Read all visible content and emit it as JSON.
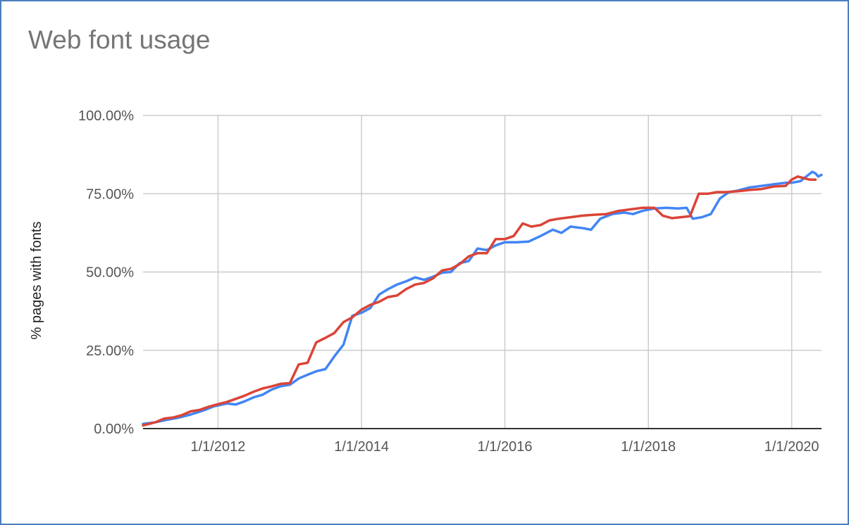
{
  "title": "Web font usage",
  "chart_data": {
    "type": "line",
    "title": "Web font usage",
    "xlabel": "",
    "ylabel": "% pages with fonts",
    "xlim": [
      "2010-12-15",
      "2020-06-01"
    ],
    "ylim": [
      0,
      100
    ],
    "x_ticks": [
      "1/1/2012",
      "1/1/2014",
      "1/1/2016",
      "1/1/2018",
      "1/1/2020"
    ],
    "y_ticks": [
      "0.00%",
      "25.00%",
      "50.00%",
      "75.00%",
      "100.00%"
    ],
    "grid": true,
    "legend": "none",
    "colors": {
      "blue": "#4285f4",
      "red": "#db4437",
      "grid": "#cccccc",
      "axis": "#333333",
      "frame": "#4a7ebb"
    },
    "series": [
      {
        "color": "#4285f4",
        "points": [
          [
            "2010-12-15",
            1.5
          ],
          [
            "2011-02-15",
            2.0
          ],
          [
            "2011-04-15",
            2.8
          ],
          [
            "2011-06-15",
            3.5
          ],
          [
            "2011-08-15",
            4.5
          ],
          [
            "2011-10-15",
            5.7
          ],
          [
            "2011-12-15",
            7.2
          ],
          [
            "2012-02-15",
            8.0
          ],
          [
            "2012-04-01",
            7.7
          ],
          [
            "2012-05-15",
            8.7
          ],
          [
            "2012-07-01",
            10.0
          ],
          [
            "2012-08-15",
            10.8
          ],
          [
            "2012-10-01",
            12.5
          ],
          [
            "2012-11-15",
            13.5
          ],
          [
            "2013-01-01",
            14.0
          ],
          [
            "2013-02-15",
            16.0
          ],
          [
            "2013-04-01",
            17.2
          ],
          [
            "2013-05-15",
            18.3
          ],
          [
            "2013-07-01",
            19.0
          ],
          [
            "2013-08-15",
            23.0
          ],
          [
            "2013-10-01",
            26.8
          ],
          [
            "2013-11-15",
            36.0
          ],
          [
            "2014-01-01",
            37.0
          ],
          [
            "2014-02-15",
            38.5
          ],
          [
            "2014-04-01",
            42.8
          ],
          [
            "2014-05-15",
            44.5
          ],
          [
            "2014-07-01",
            46.0
          ],
          [
            "2014-08-15",
            47.0
          ],
          [
            "2014-10-01",
            48.3
          ],
          [
            "2014-11-15",
            47.5
          ],
          [
            "2015-01-01",
            48.5
          ],
          [
            "2015-02-15",
            49.8
          ],
          [
            "2015-04-01",
            50.0
          ],
          [
            "2015-05-15",
            52.8
          ],
          [
            "2015-07-01",
            53.5
          ],
          [
            "2015-08-15",
            57.5
          ],
          [
            "2015-10-01",
            57.0
          ],
          [
            "2015-11-15",
            58.5
          ],
          [
            "2016-01-01",
            59.5
          ],
          [
            "2016-03-01",
            59.5
          ],
          [
            "2016-05-01",
            59.7
          ],
          [
            "2016-07-01",
            61.5
          ],
          [
            "2016-09-01",
            63.5
          ],
          [
            "2016-10-15",
            62.5
          ],
          [
            "2016-12-01",
            64.5
          ],
          [
            "2017-02-01",
            64.0
          ],
          [
            "2017-03-15",
            63.5
          ],
          [
            "2017-05-01",
            67.0
          ],
          [
            "2017-07-01",
            68.5
          ],
          [
            "2017-09-01",
            69.0
          ],
          [
            "2017-10-15",
            68.5
          ],
          [
            "2017-12-01",
            69.5
          ],
          [
            "2018-02-01",
            70.3
          ],
          [
            "2018-04-01",
            70.5
          ],
          [
            "2018-06-01",
            70.3
          ],
          [
            "2018-07-15",
            70.5
          ],
          [
            "2018-08-15",
            67.0
          ],
          [
            "2018-10-01",
            67.5
          ],
          [
            "2018-11-15",
            68.5
          ],
          [
            "2019-01-01",
            73.5
          ],
          [
            "2019-02-15",
            75.5
          ],
          [
            "2019-04-01",
            76.0
          ],
          [
            "2019-06-01",
            77.0
          ],
          [
            "2019-08-01",
            77.5
          ],
          [
            "2019-10-01",
            78.0
          ],
          [
            "2019-12-01",
            78.5
          ],
          [
            "2020-01-01",
            78.5
          ],
          [
            "2020-02-15",
            79.0
          ],
          [
            "2020-03-15",
            80.5
          ],
          [
            "2020-04-15",
            82.0
          ],
          [
            "2020-05-01",
            81.5
          ],
          [
            "2020-05-15",
            80.5
          ],
          [
            "2020-06-01",
            81.0
          ]
        ]
      },
      {
        "color": "#db4437",
        "points": [
          [
            "2010-12-15",
            1.0
          ],
          [
            "2011-02-15",
            2.0
          ],
          [
            "2011-04-01",
            3.2
          ],
          [
            "2011-05-15",
            3.5
          ],
          [
            "2011-07-01",
            4.3
          ],
          [
            "2011-08-15",
            5.5
          ],
          [
            "2011-10-01",
            6.0
          ],
          [
            "2011-11-15",
            7.0
          ],
          [
            "2012-01-01",
            7.8
          ],
          [
            "2012-02-15",
            8.5
          ],
          [
            "2012-04-01",
            9.5
          ],
          [
            "2012-05-15",
            10.5
          ],
          [
            "2012-07-01",
            11.8
          ],
          [
            "2012-08-15",
            12.8
          ],
          [
            "2012-10-01",
            13.5
          ],
          [
            "2012-11-15",
            14.3
          ],
          [
            "2013-01-01",
            14.5
          ],
          [
            "2013-02-15",
            20.5
          ],
          [
            "2013-04-01",
            21.0
          ],
          [
            "2013-05-15",
            27.5
          ],
          [
            "2013-07-01",
            29.0
          ],
          [
            "2013-08-15",
            30.5
          ],
          [
            "2013-10-01",
            34.0
          ],
          [
            "2013-11-15",
            35.5
          ],
          [
            "2014-01-01",
            38.0
          ],
          [
            "2014-02-15",
            39.5
          ],
          [
            "2014-04-01",
            40.5
          ],
          [
            "2014-05-15",
            42.0
          ],
          [
            "2014-07-01",
            42.5
          ],
          [
            "2014-08-15",
            44.5
          ],
          [
            "2014-10-01",
            46.0
          ],
          [
            "2014-11-15",
            46.5
          ],
          [
            "2015-01-01",
            48.0
          ],
          [
            "2015-02-15",
            50.5
          ],
          [
            "2015-04-01",
            51.0
          ],
          [
            "2015-05-15",
            52.5
          ],
          [
            "2015-07-01",
            55.0
          ],
          [
            "2015-08-15",
            56.0
          ],
          [
            "2015-10-01",
            56.0
          ],
          [
            "2015-11-15",
            60.5
          ],
          [
            "2016-01-01",
            60.5
          ],
          [
            "2016-02-15",
            61.5
          ],
          [
            "2016-04-01",
            65.5
          ],
          [
            "2016-05-15",
            64.5
          ],
          [
            "2016-07-01",
            65.0
          ],
          [
            "2016-08-15",
            66.5
          ],
          [
            "2016-10-01",
            67.0
          ],
          [
            "2016-12-01",
            67.5
          ],
          [
            "2017-02-01",
            68.0
          ],
          [
            "2017-04-01",
            68.3
          ],
          [
            "2017-06-01",
            68.5
          ],
          [
            "2017-08-01",
            69.5
          ],
          [
            "2017-10-01",
            70.0
          ],
          [
            "2017-12-01",
            70.5
          ],
          [
            "2018-02-01",
            70.5
          ],
          [
            "2018-03-15",
            68.0
          ],
          [
            "2018-05-01",
            67.2
          ],
          [
            "2018-06-15",
            67.5
          ],
          [
            "2018-08-01",
            67.8
          ],
          [
            "2018-09-15",
            75.0
          ],
          [
            "2018-11-01",
            75.0
          ],
          [
            "2018-12-15",
            75.5
          ],
          [
            "2019-02-01",
            75.5
          ],
          [
            "2019-04-01",
            75.8
          ],
          [
            "2019-06-01",
            76.2
          ],
          [
            "2019-08-01",
            76.5
          ],
          [
            "2019-10-01",
            77.3
          ],
          [
            "2019-12-01",
            77.5
          ],
          [
            "2020-01-01",
            79.5
          ],
          [
            "2020-02-01",
            80.5
          ],
          [
            "2020-03-01",
            80.0
          ],
          [
            "2020-04-01",
            79.5
          ],
          [
            "2020-05-01",
            79.5
          ]
        ]
      }
    ]
  }
}
